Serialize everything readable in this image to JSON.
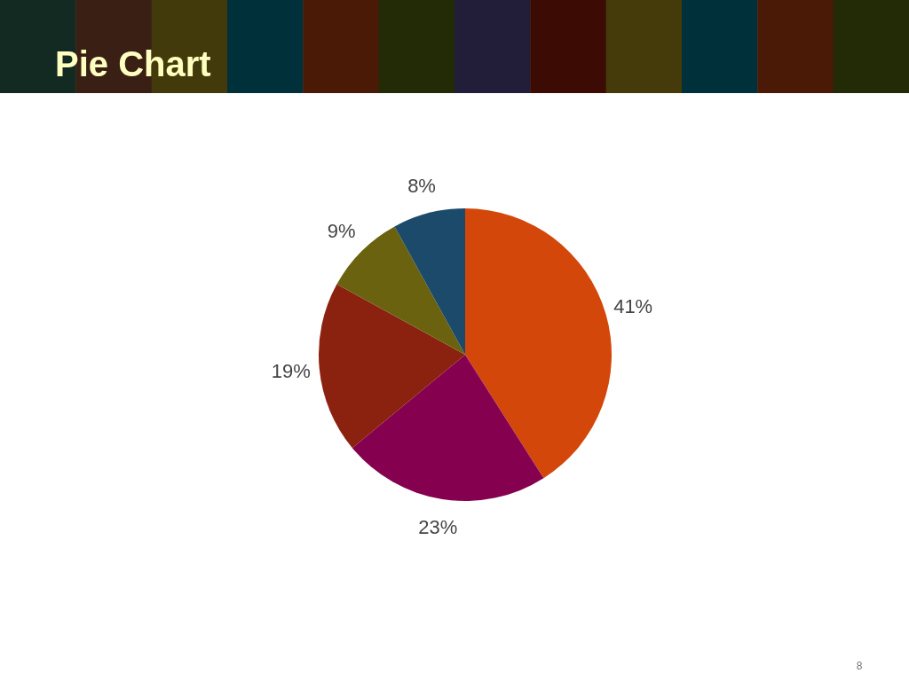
{
  "chart_data": {
    "type": "pie",
    "title": "Pie Chart",
    "categories": [
      null,
      null,
      null,
      null,
      null
    ],
    "values": [
      41,
      23,
      19,
      9,
      8
    ],
    "colors": [
      "#d4470a",
      "#860050",
      "#8b2210",
      "#6b6210",
      "#1c4a6a"
    ],
    "value_labels": [
      "41%",
      "23%",
      "19%",
      "9%",
      "8%"
    ],
    "annotations": [
      "8"
    ]
  }
}
